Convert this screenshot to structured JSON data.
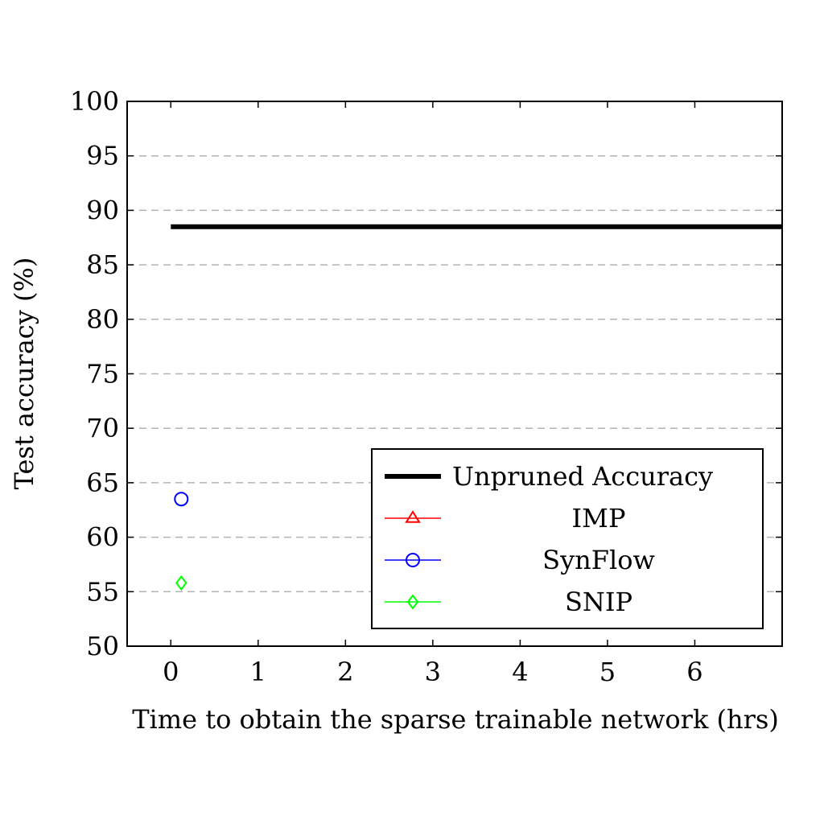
{
  "chart_data": {
    "type": "scatter",
    "xlabel": "Time to obtain the sparse trainable network (hrs)",
    "ylabel": "Test accuracy (%)",
    "xlim": [
      -0.5,
      7.0
    ],
    "ylim": [
      50,
      100
    ],
    "xticks": [
      0,
      1,
      2,
      3,
      4,
      5,
      6
    ],
    "yticks": [
      50,
      55,
      60,
      65,
      70,
      75,
      80,
      85,
      90,
      95,
      100
    ],
    "grid": "horizontal-dashed",
    "legend_position": "bottom-right",
    "reference_line": {
      "name": "Unpruned Accuracy",
      "y": 88.5,
      "x_start": 0,
      "color": "#000000"
    },
    "series": [
      {
        "name": "IMP",
        "marker": "triangle",
        "color": "#ff0000",
        "points": []
      },
      {
        "name": "SynFlow",
        "marker": "circle",
        "color": "#0000ff",
        "points": [
          {
            "x": 0.12,
            "y": 63.5
          }
        ]
      },
      {
        "name": "SNIP",
        "marker": "diamond",
        "color": "#00ff00",
        "points": [
          {
            "x": 0.12,
            "y": 55.8
          }
        ]
      }
    ]
  }
}
